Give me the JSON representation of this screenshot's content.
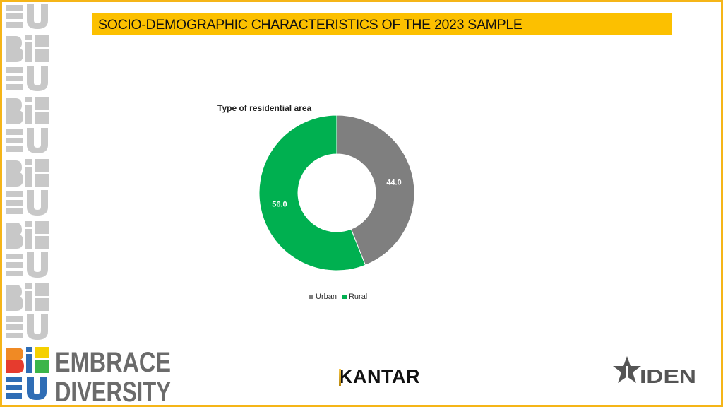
{
  "slide": {
    "title": "SOCIO-DEMOGRAPHIC CHARACTERISTICS OF THE 2023 SAMPLE",
    "accent_color": "#fcc000",
    "border_color": "#f5b518"
  },
  "chart_data": {
    "type": "pie",
    "variant": "donut",
    "title": "Type of residential area",
    "categories": [
      "Urban",
      "Rural"
    ],
    "values": [
      44.0,
      56.0
    ],
    "labels": [
      "44.0",
      "56.0"
    ],
    "colors": [
      "#7f7f7f",
      "#00b050"
    ],
    "legend_position": "bottom",
    "start_angle_deg": 0,
    "direction": "clockwise"
  },
  "legend": {
    "items": [
      {
        "label": "Urban",
        "color": "#7f7f7f"
      },
      {
        "label": "Rural",
        "color": "#00b050"
      }
    ]
  },
  "logos": {
    "embrace": {
      "line1": "EMBRACE",
      "line2": "DIVERSITY",
      "mark_top": "BiE",
      "mark_bottom": "EU"
    },
    "kantar": "KANTAR",
    "iden": "IDEN"
  }
}
